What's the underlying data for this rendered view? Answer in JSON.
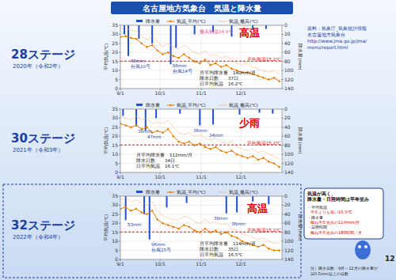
{
  "chart_data": [
    {
      "type": "combo",
      "title": "28ステージ",
      "subtitle": "2020年（令和2年）",
      "y_label": "平均気温(℃)",
      "y2_label": "降水量(mm)",
      "x": [
        0,
        4,
        8,
        12,
        16,
        20,
        24,
        28,
        32,
        36,
        40,
        44,
        48,
        52,
        56,
        60,
        64,
        68,
        72,
        76,
        80,
        84,
        88,
        92,
        96,
        100,
        104,
        108,
        112,
        116,
        120
      ],
      "xlim": [
        0,
        122
      ],
      "xticks": [
        {
          "value": 0,
          "label": "9/1"
        },
        {
          "value": 30,
          "label": "10/1"
        },
        {
          "value": 61,
          "label": "11/1"
        },
        {
          "value": 91,
          "label": "12/1"
        }
      ],
      "ylim": [
        0,
        35
      ],
      "yticks": [
        0,
        5,
        10,
        15,
        20,
        25,
        30,
        35
      ],
      "y2lim": [
        140,
        0
      ],
      "y2ticks": [
        0,
        20,
        40,
        60,
        80,
        100,
        120,
        140
      ],
      "grid": true,
      "legend": "top",
      "normal_temp": 15.2,
      "series": [
        {
          "name": "降水量",
          "type": "bar",
          "axis": "y2",
          "color": "#1f4fd8",
          "x": [
            3,
            6,
            14,
            24,
            38,
            42,
            56,
            70,
            84,
            100,
            110
          ],
          "values": [
            20,
            68,
            30,
            40,
            86,
            50,
            20,
            15,
            25,
            10,
            8
          ]
        },
        {
          "name": "気温_平均(℃)",
          "type": "line",
          "color": "#e67e00",
          "marker": "diamond",
          "values": [
            28.5,
            29,
            28,
            27.5,
            25,
            23,
            24,
            21,
            19,
            20,
            18,
            17,
            19,
            17,
            15,
            14,
            16,
            13,
            14,
            12,
            13,
            11,
            10,
            9,
            9,
            8,
            7,
            6,
            5,
            6,
            4
          ]
        },
        {
          "name": "気温_最高(℃)",
          "type": "line",
          "color": "#f2a65a",
          "line_style": "dotted",
          "values": [
            33,
            34,
            32,
            32,
            29,
            27,
            29,
            26,
            23,
            25,
            23,
            22,
            24,
            22,
            20,
            19,
            21,
            18,
            19,
            17,
            18,
            16,
            14,
            13,
            14,
            12,
            11,
            10,
            9,
            10,
            8
          ]
        }
      ],
      "annotations": [
        "高温",
        "最高気温24.9℃",
        "68mm",
        "台風10号",
        "86mm",
        "台風14号",
        "平年気温15.2℃"
      ],
      "stats": [
        "月平均降水量　140mm/月",
        "降水日数　　37日",
        "日平均気温　16.2℃"
      ]
    },
    {
      "type": "combo",
      "title": "30ステージ",
      "subtitle": "2021年（令和3年）",
      "y_label": "平均気温(℃)",
      "y2_label": "降水量(mm)",
      "x": [
        0,
        4,
        8,
        12,
        16,
        20,
        24,
        28,
        32,
        36,
        40,
        44,
        48,
        52,
        56,
        60,
        64,
        68,
        72,
        76,
        80,
        84,
        88,
        92,
        96,
        100,
        104,
        108,
        112,
        116,
        120
      ],
      "xlim": [
        0,
        122
      ],
      "xticks": [
        {
          "value": 0,
          "label": "9/1"
        },
        {
          "value": 30,
          "label": "10/1"
        },
        {
          "value": 61,
          "label": "11/1"
        },
        {
          "value": 91,
          "label": "12/1"
        }
      ],
      "ylim": [
        0,
        35
      ],
      "yticks": [
        0,
        5,
        10,
        15,
        20,
        25,
        30,
        35
      ],
      "y2lim": [
        140,
        0
      ],
      "y2ticks": [
        0,
        20,
        40,
        60,
        80,
        100,
        120,
        140
      ],
      "grid": true,
      "legend": "top",
      "normal_temp": 15.2,
      "series": [
        {
          "name": "降水量",
          "type": "bar",
          "axis": "y2",
          "color": "#1f4fd8",
          "x": [
            2,
            12,
            19,
            27,
            45,
            60,
            70,
            90,
            105,
            115
          ],
          "values": [
            15,
            38,
            47,
            20,
            10,
            36,
            34,
            12,
            8,
            10
          ]
        },
        {
          "name": "気温_平均(℃)",
          "type": "line",
          "color": "#e67e00",
          "marker": "diamond",
          "values": [
            27,
            26,
            25,
            26,
            24,
            25,
            22,
            23,
            22,
            24,
            20,
            17,
            16,
            17,
            15,
            16,
            14,
            13,
            14,
            12,
            11,
            12,
            10,
            9,
            8,
            9,
            7,
            8,
            6,
            5,
            3
          ]
        },
        {
          "name": "気温_最高(℃)",
          "type": "line",
          "color": "#f2a65a",
          "line_style": "dotted",
          "values": [
            31,
            30,
            29,
            31,
            29,
            30,
            27,
            28,
            27,
            29,
            25,
            22,
            21,
            22,
            20,
            21,
            19,
            18,
            19,
            17,
            16,
            17,
            14,
            13,
            12,
            13,
            11,
            12,
            10,
            9,
            7
          ]
        }
      ],
      "annotations": [
        "少雨",
        "38mm",
        "47mm",
        "36mm",
        "34mm",
        "平年気温15.2℃"
      ],
      "stats": [
        "月平均降水量　112mm/月",
        "降水日数　　34日",
        "日平均気温　16.1℃"
      ]
    },
    {
      "type": "combo",
      "title": "32ステージ",
      "subtitle": "2022年（令和4年）",
      "y_label": "平均気温(℃)",
      "y2_label": "降水量(mm)",
      "x": [
        0,
        4,
        8,
        12,
        16,
        20,
        24,
        28,
        32,
        36,
        40,
        44,
        48,
        52,
        56,
        60,
        64,
        68,
        72,
        76,
        80,
        84,
        88,
        92,
        96,
        100,
        104,
        108,
        112,
        116,
        120
      ],
      "xlim": [
        0,
        122
      ],
      "xticks": [
        {
          "value": 0,
          "label": "9/1"
        },
        {
          "value": 30,
          "label": "10/1"
        },
        {
          "value": 61,
          "label": "11/1"
        },
        {
          "value": 91,
          "label": "12/1"
        }
      ],
      "ylim": [
        0,
        35
      ],
      "yticks": [
        0,
        5,
        10,
        15,
        20,
        25,
        30,
        35
      ],
      "y2lim": [
        140,
        0
      ],
      "y2ticks": [
        0,
        20,
        40,
        60,
        80,
        100,
        120,
        140
      ],
      "grid": true,
      "legend": "top",
      "normal_temp": 15.2,
      "series": [
        {
          "name": "降水量",
          "type": "bar",
          "axis": "y2",
          "color": "#1f4fd8",
          "x": [
            4,
            18,
            22,
            35,
            50,
            80,
            88,
            100,
            112
          ],
          "values": [
            53,
            40,
            96,
            25,
            15,
            38,
            36,
            12,
            18
          ]
        },
        {
          "name": "気温_平均(℃)",
          "type": "line",
          "color": "#e67e00",
          "marker": "diamond",
          "values": [
            28,
            29,
            27,
            28,
            26,
            25,
            27,
            22,
            20,
            19,
            18,
            17,
            19,
            18,
            16,
            15,
            17,
            15,
            16,
            14,
            15,
            13,
            12,
            10,
            9,
            8,
            7,
            8,
            6,
            5,
            5
          ]
        },
        {
          "name": "気温_最高(℃)",
          "type": "line",
          "color": "#f2a65a",
          "line_style": "dotted",
          "values": [
            33,
            34,
            32,
            33,
            31,
            30,
            32,
            27,
            24,
            23,
            22,
            22,
            24,
            23,
            21,
            20,
            22,
            20,
            21,
            19,
            20,
            17,
            16,
            14,
            13,
            12,
            11,
            12,
            10,
            9,
            9
          ]
        }
      ],
      "annotations": [
        "高温",
        "53mm",
        "96mm",
        "台風15号",
        "38mm",
        "36mm",
        "平年気温15.2℃"
      ],
      "stats": [
        "月平均降水量　114mm/月",
        "降水日数　　35日",
        "日平均気温　16.5℃"
      ]
    }
  ],
  "page": {
    "title": "名古屋地方気象台　気温と降水量",
    "source": [
      "資料：気象庁_気象統計情報",
      "名古屋地方気象台",
      "http://www.jma.go.jp/jma/",
      "menu/report.html"
    ],
    "callout": {
      "heading": [
        "気温が高く、",
        "降水量・日照時間は平年並み"
      ],
      "items": [
        "・平均気温",
        "平年よりも高い16.5℃",
        "・降水量",
        "概ね平年並みの114mm/月",
        "・日照時間",
        "概ね平年並みの180時間／月"
      ]
    },
    "footnote": [
      "注）降水日数：9月～12月の降水量が",
      "日0.5mm以上の日数"
    ],
    "page_number": "12"
  }
}
